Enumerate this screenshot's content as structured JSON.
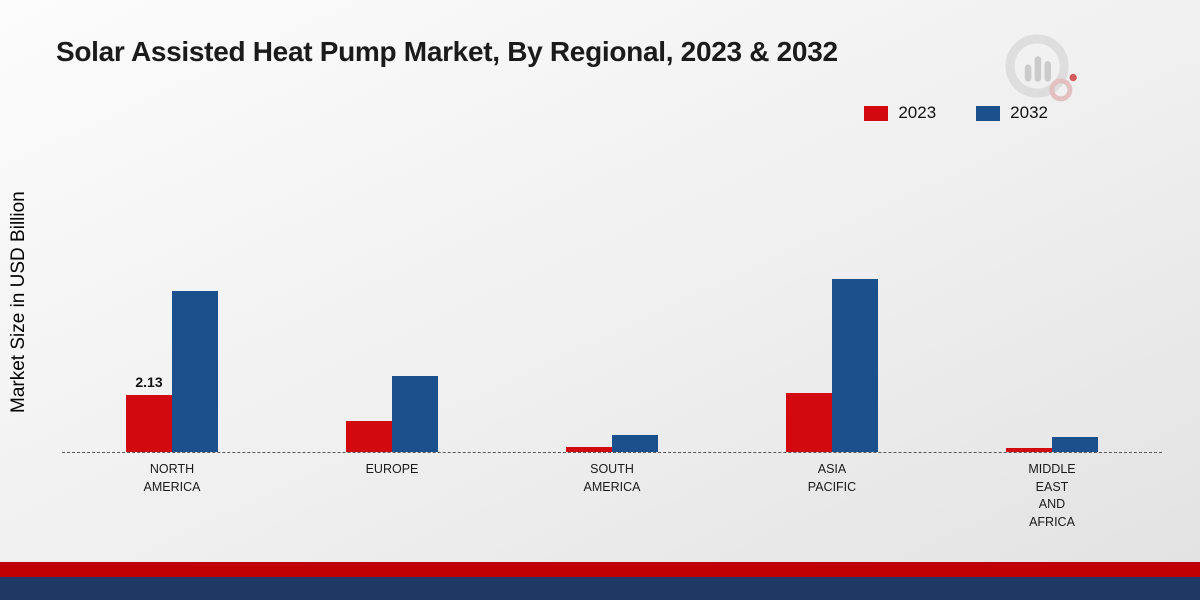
{
  "colors": {
    "footer_red": "#c00000",
    "footer_navy": "#1f3864",
    "baseline": "#595959",
    "background_top": "#fcfcfc",
    "background_bottom": "#e2e2e2"
  },
  "logo": {
    "name": "market-research-brand-logo"
  },
  "chart_data": {
    "type": "bar",
    "title": "Solar Assisted Heat Pump Market, By Regional, 2023 & 2032",
    "ylabel": "Market Size in USD Billion",
    "xlabel": "",
    "categories": [
      "NORTH\nAMERICA",
      "EUROPE",
      "SOUTH\nAMERICA",
      "ASIA\nPACIFIC",
      "MIDDLE\nEAST\nAND\nAFRICA"
    ],
    "series": [
      {
        "name": "2023",
        "color": "#d20a10",
        "values": [
          2.13,
          1.15,
          0.18,
          2.2,
          0.14
        ],
        "labels": [
          "2.13",
          "",
          "",
          "",
          ""
        ]
      },
      {
        "name": "2032",
        "color": "#1a508c",
        "values": [
          5.95,
          2.8,
          0.62,
          6.4,
          0.55
        ],
        "labels": [
          "",
          "",
          "",
          "",
          ""
        ]
      }
    ],
    "ylim": [
      0,
      7
    ],
    "grid": false,
    "legend_position": "top-right",
    "axis_style": "dashed-baseline-only"
  }
}
